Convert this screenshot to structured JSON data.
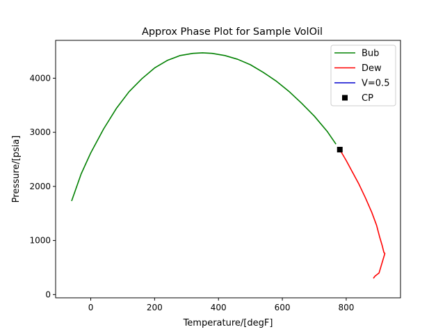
{
  "chart_data": {
    "type": "line",
    "title": "Approx Phase Plot for Sample VolOil",
    "xlabel": "Temperature/[degF]",
    "ylabel": "Pressure/[psia]",
    "xlim": [
      -110,
      970
    ],
    "ylim": [
      -60,
      4700
    ],
    "xticks": [
      0,
      200,
      400,
      600,
      800
    ],
    "yticks": [
      0,
      1000,
      2000,
      3000,
      4000
    ],
    "grid": false,
    "legend_position": "top-right",
    "series": [
      {
        "name": "Bub",
        "color": "#008000",
        "x": [
          -60,
          -30,
          0,
          40,
          80,
          120,
          160,
          200,
          240,
          280,
          320,
          350,
          380,
          420,
          460,
          500,
          540,
          580,
          620,
          660,
          700,
          740,
          768
        ],
        "y": [
          1730,
          2230,
          2620,
          3060,
          3440,
          3750,
          3990,
          4190,
          4330,
          4420,
          4460,
          4470,
          4460,
          4420,
          4350,
          4250,
          4110,
          3950,
          3760,
          3540,
          3300,
          3020,
          2780
        ]
      },
      {
        "name": "Dew",
        "color": "#ff0000",
        "x": [
          780,
          800,
          820,
          840,
          860,
          880,
          895,
          905,
          913,
          918,
          921,
          910,
          903,
          890,
          885
        ],
        "y": [
          2680,
          2480,
          2260,
          2040,
          1790,
          1520,
          1280,
          1060,
          900,
          780,
          760,
          540,
          400,
          340,
          300
        ]
      },
      {
        "name": "V=0.5",
        "color": "#0000cd",
        "x": [],
        "y": []
      },
      {
        "name": "CP",
        "color": "#000000",
        "marker": "square",
        "x": [
          780
        ],
        "y": [
          2680
        ]
      }
    ]
  }
}
